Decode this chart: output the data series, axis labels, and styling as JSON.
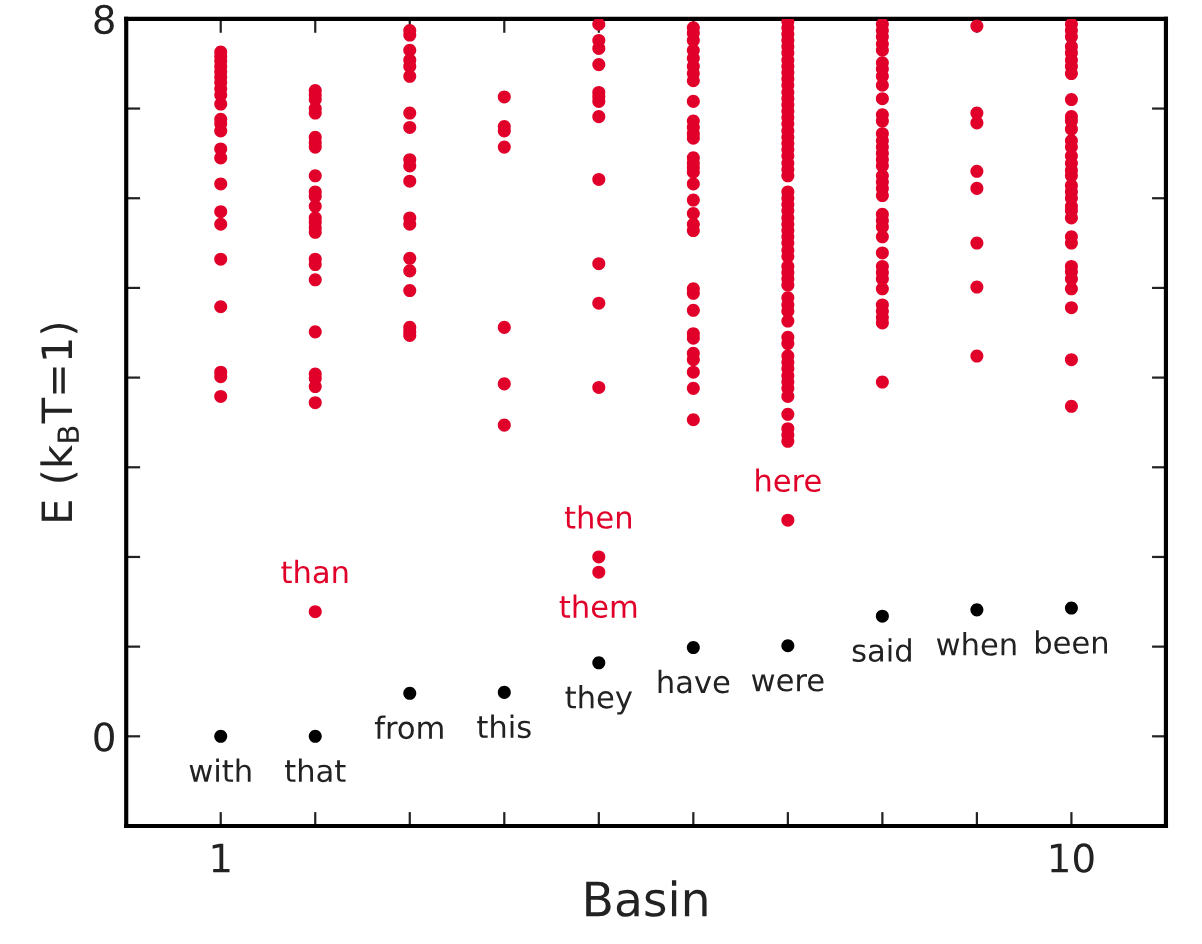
{
  "chart_data": {
    "type": "scatter",
    "xlabel": "Basin",
    "ylabel": "E (k$_{B}$T=1)",
    "xlim": [
      0,
      11
    ],
    "ylim": [
      -1,
      8
    ],
    "xticks": [
      1,
      {
        "value": 2,
        "label": null
      },
      {
        "value": 3,
        "label": null
      },
      {
        "value": 4,
        "label": null
      },
      {
        "value": 5,
        "label": null
      },
      {
        "value": 6,
        "label": null
      },
      {
        "value": 7,
        "label": null
      },
      {
        "value": 8,
        "label": null
      },
      {
        "value": 9,
        "label": null
      },
      10
    ],
    "yticks": [
      0,
      {
        "value": 1,
        "label": null
      },
      {
        "value": 2,
        "label": null
      },
      {
        "value": 3,
        "label": null
      },
      {
        "value": 4,
        "label": null
      },
      {
        "value": 5,
        "label": null
      },
      {
        "value": 6,
        "label": null
      },
      {
        "value": 7,
        "label": null
      },
      8
    ],
    "marker": "circle",
    "grid": false,
    "legend": false,
    "series": [
      {
        "color": "#e0002a",
        "x": [
          1,
          1,
          1,
          1,
          1,
          1,
          1,
          1,
          1,
          1,
          1,
          1,
          1,
          1,
          1,
          1,
          1,
          1,
          1,
          1,
          1,
          1,
          1,
          2,
          2,
          2,
          2,
          2,
          2,
          2,
          2,
          2,
          2,
          2,
          2,
          2,
          2,
          2,
          2,
          2,
          2,
          2,
          2,
          2,
          2,
          2,
          2,
          2,
          3,
          3,
          3,
          3,
          3,
          3,
          3,
          3,
          3,
          3,
          3,
          3,
          3,
          3,
          3,
          3,
          3,
          3,
          3,
          4,
          4,
          4,
          4,
          4,
          4,
          4,
          5,
          5,
          5,
          5,
          5,
          5,
          5,
          5,
          5,
          5,
          5,
          5,
          5,
          5,
          6,
          6,
          6,
          6,
          6,
          6,
          6,
          6,
          6,
          6,
          6,
          6,
          6,
          6,
          6,
          6,
          6,
          6,
          6,
          6,
          6,
          6,
          6,
          6,
          6,
          6,
          6,
          6,
          6,
          6,
          6,
          6,
          7,
          7,
          7,
          7,
          7,
          7,
          7,
          7,
          7,
          7,
          7,
          7,
          7,
          7,
          7,
          7,
          7,
          7,
          7,
          7,
          7,
          7,
          7,
          7,
          7,
          7,
          7,
          7,
          7,
          7,
          7,
          7,
          7,
          7,
          7,
          7,
          7,
          7,
          7,
          7,
          7,
          7,
          7,
          7,
          7,
          7,
          7,
          7,
          7,
          7,
          7,
          7,
          7,
          7,
          7,
          7,
          7,
          7,
          8,
          8,
          8,
          8,
          8,
          8,
          8,
          8,
          8,
          8,
          8,
          8,
          8,
          8,
          8,
          8,
          8,
          8,
          8,
          8,
          8,
          8,
          8,
          8,
          8,
          8,
          8,
          8,
          8,
          8,
          8,
          8,
          8,
          8,
          8,
          8,
          9,
          9,
          9,
          9,
          9,
          9,
          9,
          9,
          10,
          10,
          10,
          10,
          10,
          10,
          10,
          10,
          10,
          10,
          10,
          10,
          10,
          10,
          10,
          10,
          10,
          10,
          10,
          10,
          10,
          10,
          10,
          10,
          10,
          10,
          10,
          10,
          10,
          10,
          10,
          10,
          10
        ],
        "values": [
          7.63,
          7.58,
          7.53,
          7.47,
          7.41,
          7.35,
          7.29,
          7.22,
          7.15,
          7.05,
          6.88,
          6.83,
          6.75,
          6.55,
          6.45,
          6.16,
          5.85,
          5.71,
          5.32,
          4.79,
          4.06,
          4.01,
          3.79,
          7.2,
          7.15,
          7.1,
          7.0,
          6.95,
          6.68,
          6.62,
          6.57,
          6.25,
          6.07,
          6.02,
          5.91,
          5.78,
          5.73,
          5.67,
          5.62,
          5.32,
          5.26,
          5.09,
          4.51,
          4.04,
          3.99,
          3.9,
          3.72,
          1.39,
          7.87,
          7.82,
          7.65,
          7.54,
          7.47,
          7.36,
          6.95,
          6.79,
          6.43,
          6.36,
          6.19,
          5.78,
          5.71,
          5.33,
          5.19,
          4.97,
          4.56,
          4.51,
          4.47,
          7.13,
          6.8,
          6.75,
          6.57,
          4.56,
          3.93,
          3.47,
          7.94,
          7.76,
          7.67,
          7.49,
          7.18,
          7.13,
          7.08,
          6.91,
          6.21,
          5.27,
          4.83,
          3.89,
          2.0,
          1.83,
          7.9,
          7.84,
          7.76,
          7.65,
          7.56,
          7.47,
          7.39,
          7.31,
          7.08,
          6.86,
          6.79,
          6.72,
          6.67,
          6.45,
          6.39,
          6.34,
          6.29,
          6.16,
          5.98,
          5.83,
          5.71,
          5.64,
          4.99,
          4.94,
          4.75,
          4.49,
          4.44,
          4.27,
          4.2,
          4.06,
          3.88,
          3.53,
          7.97,
          7.9,
          7.83,
          7.76,
          7.69,
          7.62,
          7.54,
          7.47,
          7.4,
          7.33,
          7.26,
          7.18,
          7.11,
          7.04,
          6.97,
          6.9,
          6.83,
          6.75,
          6.68,
          6.61,
          6.54,
          6.47,
          6.39,
          6.32,
          6.25,
          6.07,
          6.0,
          5.93,
          5.86,
          5.78,
          5.71,
          5.64,
          5.57,
          5.5,
          5.42,
          5.35,
          5.24,
          5.17,
          5.1,
          5.03,
          4.89,
          4.81,
          4.74,
          4.63,
          4.45,
          4.38,
          4.24,
          4.17,
          4.1,
          4.02,
          3.95,
          3.88,
          3.79,
          3.59,
          3.43,
          3.36,
          3.29,
          2.41,
          7.94,
          7.87,
          7.8,
          7.72,
          7.65,
          7.51,
          7.44,
          7.36,
          7.26,
          7.11,
          6.93,
          6.86,
          6.72,
          6.64,
          6.57,
          6.5,
          6.43,
          6.36,
          6.25,
          6.18,
          6.11,
          6.03,
          5.82,
          5.75,
          5.68,
          5.57,
          5.39,
          5.24,
          5.17,
          5.1,
          4.99,
          4.81,
          4.74,
          4.67,
          4.61,
          3.95,
          7.92,
          6.95,
          6.84,
          6.3,
          6.11,
          5.5,
          5.01,
          4.24,
          7.94,
          7.87,
          7.8,
          7.69,
          7.62,
          7.54,
          7.47,
          7.39,
          7.1,
          6.91,
          6.86,
          6.77,
          6.64,
          6.57,
          6.47,
          6.39,
          6.31,
          6.25,
          6.14,
          6.07,
          6.0,
          5.91,
          5.86,
          5.78,
          5.57,
          5.5,
          5.24,
          5.18,
          5.1,
          4.99,
          4.78,
          4.2,
          3.68
        ]
      },
      {
        "color": "#000000",
        "x": [
          1,
          2,
          3,
          4,
          5,
          6,
          7,
          8,
          9,
          10
        ],
        "values": [
          0,
          0,
          0.48,
          0.49,
          0.82,
          0.99,
          1.01,
          1.34,
          1.41,
          1.43
        ]
      }
    ],
    "annotations": [
      {
        "text": "with",
        "x": 1,
        "y": 0
      },
      {
        "text": "that",
        "x": 2,
        "y": 0
      },
      {
        "text": "from",
        "x": 3,
        "y": 0.48
      },
      {
        "text": "this",
        "x": 4,
        "y": 0.49
      },
      {
        "text": "they",
        "x": 5,
        "y": 0.82
      },
      {
        "text": "have",
        "x": 6,
        "y": 0.99
      },
      {
        "text": "were",
        "x": 7,
        "y": 1.01
      },
      {
        "text": "said",
        "x": 8,
        "y": 1.34
      },
      {
        "text": "when",
        "x": 9,
        "y": 1.41
      },
      {
        "text": "been",
        "x": 10,
        "y": 1.43
      },
      {
        "text": "than",
        "x": 2,
        "y": 1.39
      },
      {
        "text": "then",
        "x": 5,
        "y": 2.0
      },
      {
        "text": "them",
        "x": 5,
        "y": 1.83
      },
      {
        "text": "here",
        "x": 7,
        "y": 2.41
      }
    ]
  }
}
